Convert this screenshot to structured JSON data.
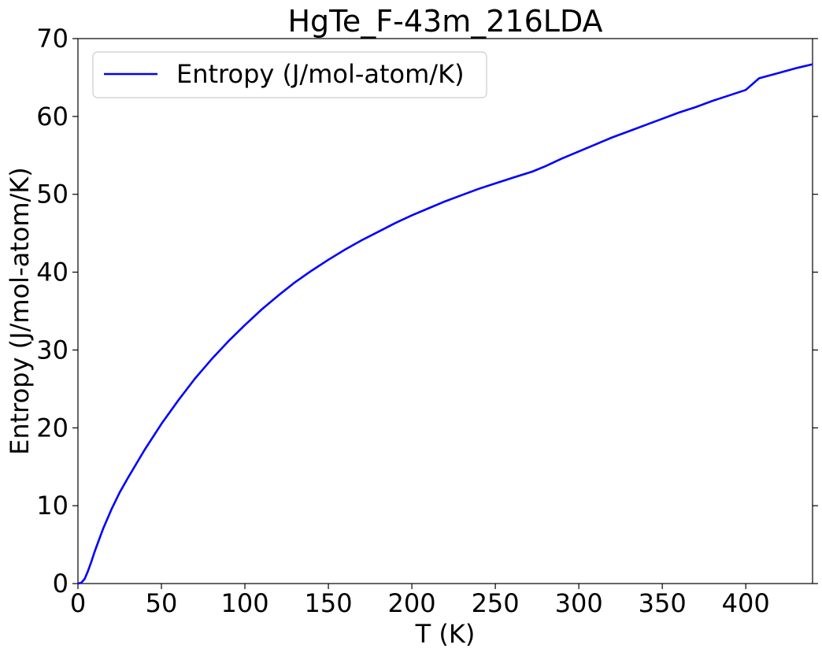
{
  "chart_data": {
    "type": "line",
    "title": "HgTe_F-43m_216LDA",
    "xlabel": "T (K)",
    "ylabel": "Entropy (J/mol-atom/K)",
    "xlim": [
      0,
      440
    ],
    "ylim": [
      0,
      70
    ],
    "xticks": [
      0,
      50,
      100,
      150,
      200,
      250,
      300,
      350,
      400
    ],
    "yticks": [
      0,
      10,
      20,
      30,
      40,
      50,
      60,
      70
    ],
    "grid": false,
    "legend_position": "upper-left",
    "series": [
      {
        "name": "Entropy (J/mol-atom/K)",
        "color": "#0000ff",
        "x": [
          0,
          2,
          4,
          6,
          8,
          10,
          15,
          20,
          25,
          30,
          40,
          50,
          60,
          70,
          80,
          90,
          100,
          110,
          120,
          130,
          140,
          150,
          160,
          170,
          180,
          190,
          200,
          210,
          220,
          230,
          240,
          250,
          260,
          272,
          280,
          290,
          300,
          310,
          320,
          330,
          340,
          350,
          360,
          370,
          380,
          390,
          400,
          408,
          420,
          430,
          440
        ],
        "y": [
          0,
          0.1,
          0.6,
          1.6,
          2.8,
          4.1,
          7.0,
          9.5,
          11.7,
          13.6,
          17.2,
          20.5,
          23.5,
          26.3,
          28.8,
          31.1,
          33.2,
          35.2,
          37.0,
          38.7,
          40.2,
          41.6,
          42.9,
          44.1,
          45.2,
          46.3,
          47.3,
          48.2,
          49.1,
          49.9,
          50.7,
          51.4,
          52.1,
          52.9,
          53.6,
          54.6,
          55.5,
          56.4,
          57.3,
          58.1,
          58.9,
          59.7,
          60.5,
          61.2,
          62.0,
          62.7,
          63.4,
          64.9,
          65.6,
          66.2,
          66.7
        ]
      }
    ]
  }
}
